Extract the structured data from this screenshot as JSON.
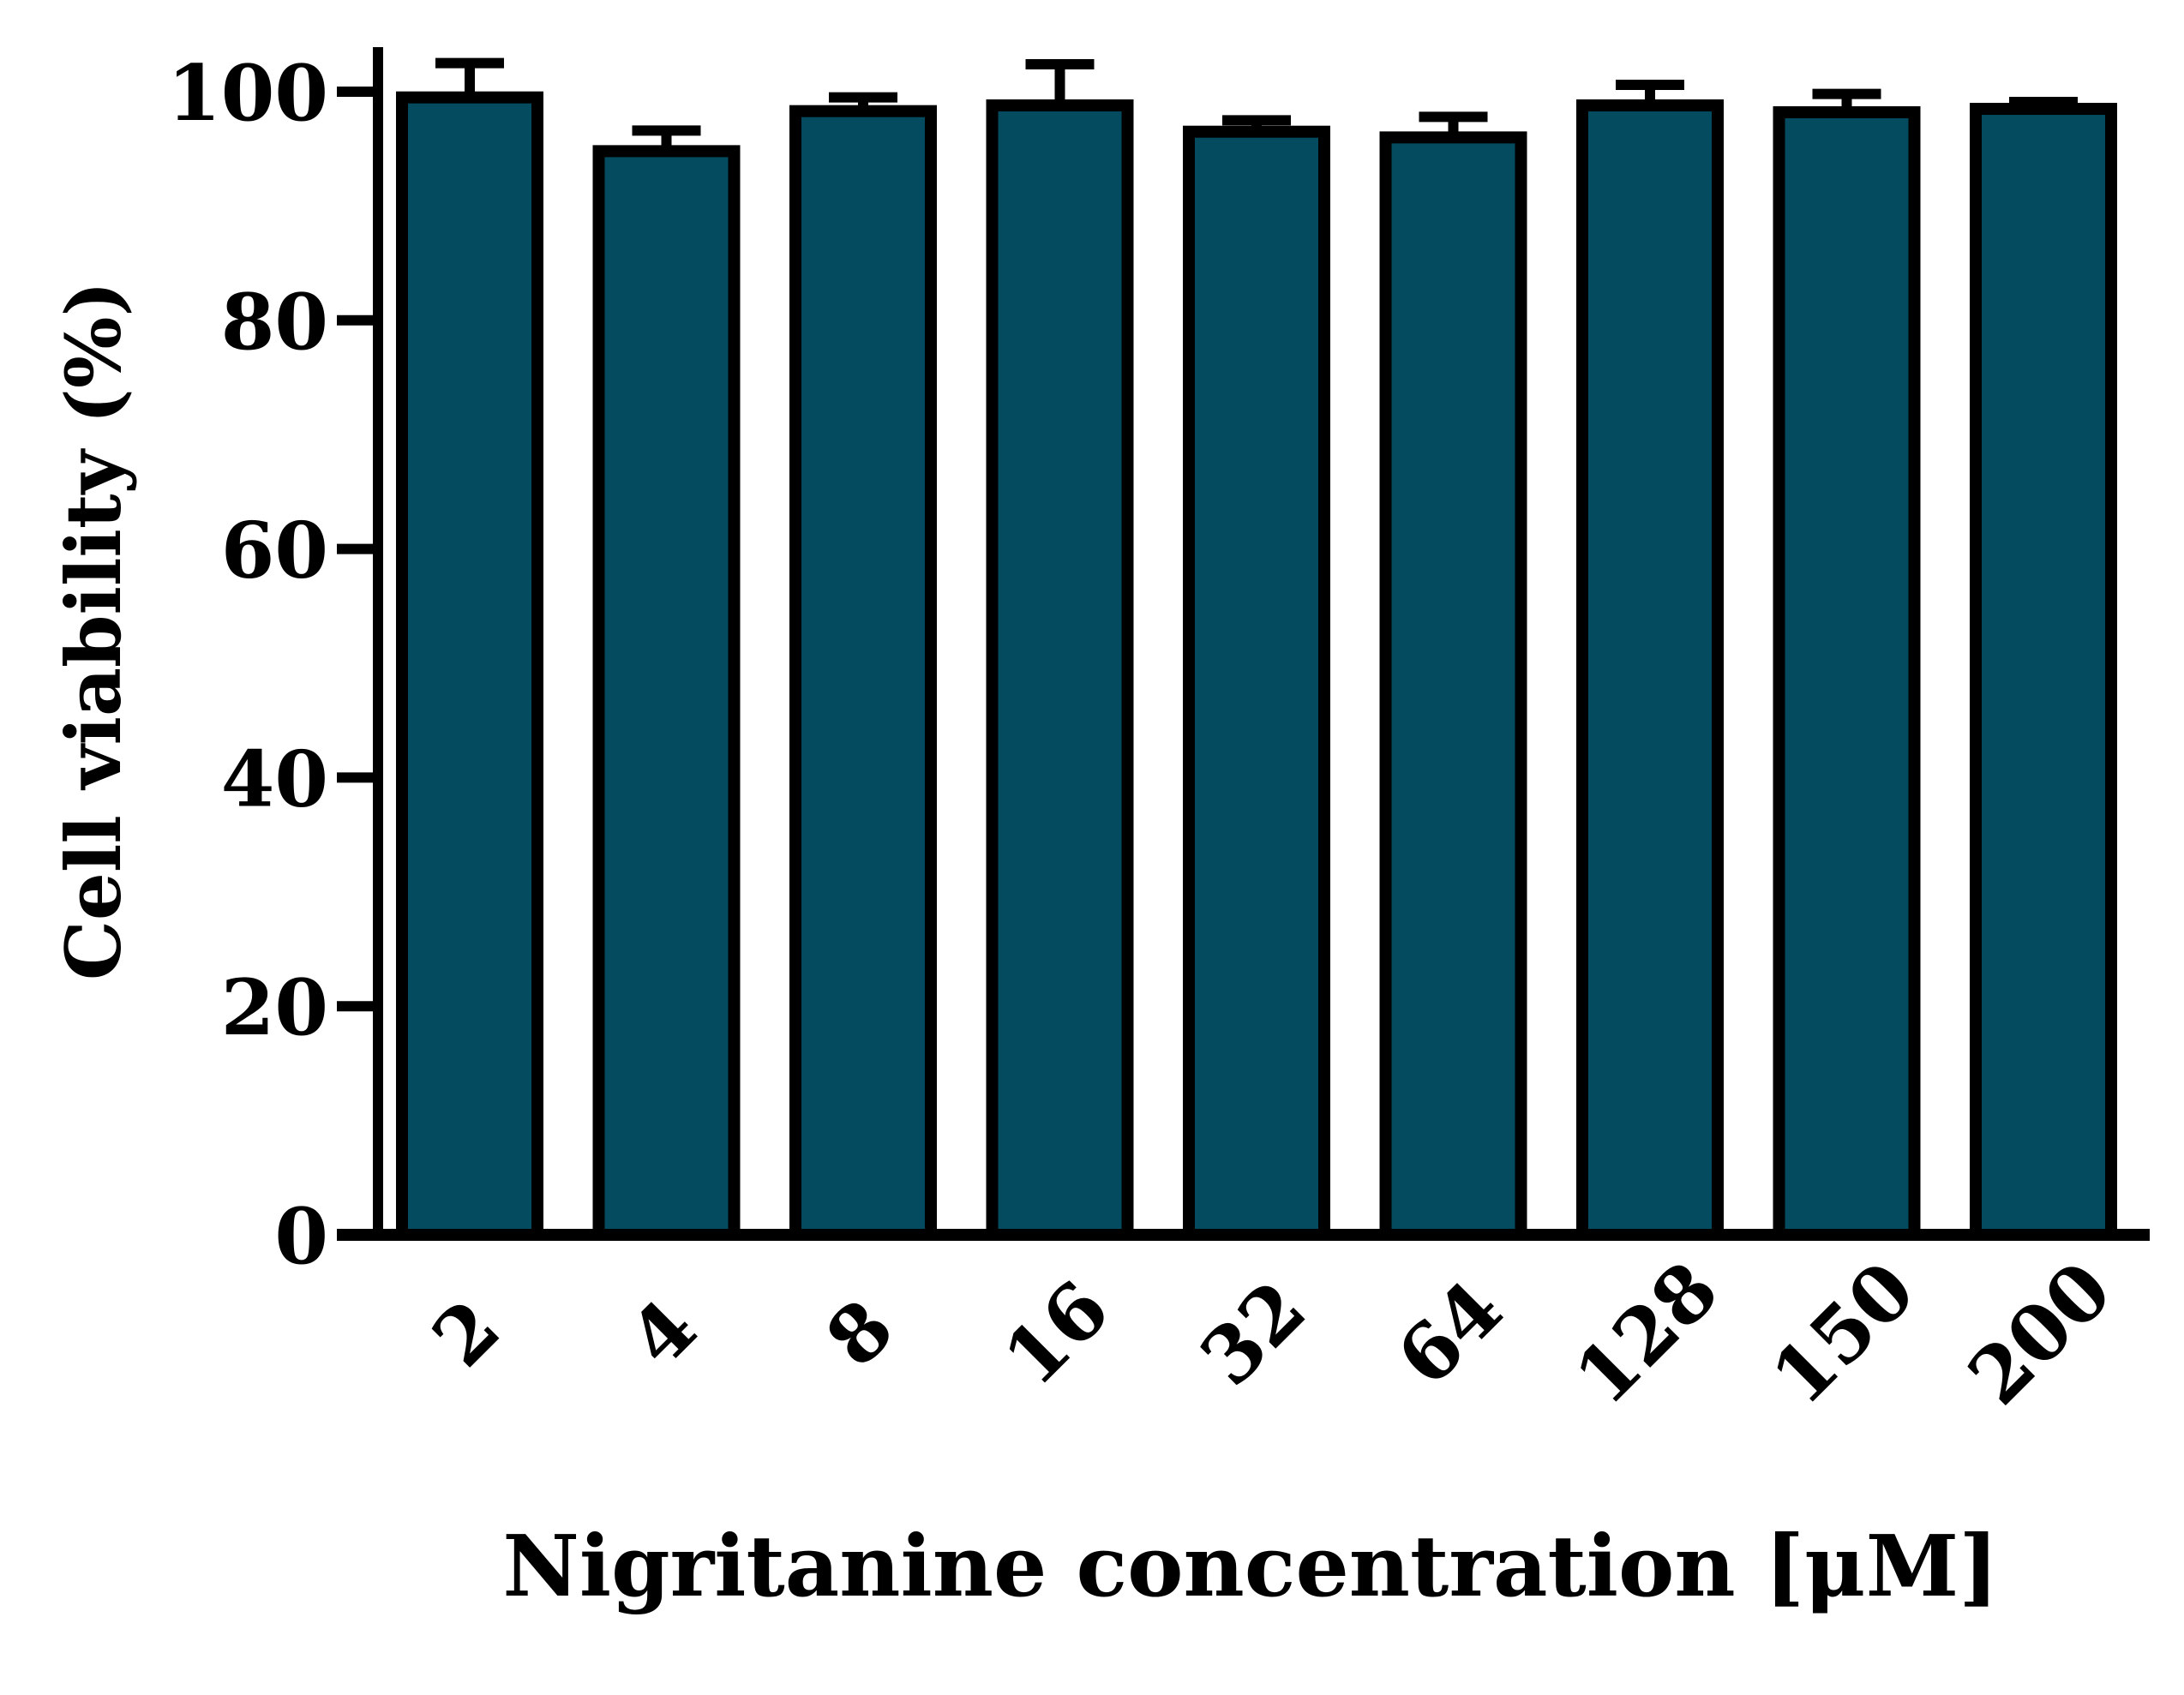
{
  "chart_data": {
    "type": "bar",
    "categories": [
      "2",
      "4",
      "8",
      "16",
      "32",
      "64",
      "128",
      "150",
      "200"
    ],
    "values": [
      99.5,
      94.8,
      98.3,
      98.8,
      96.5,
      96.0,
      98.8,
      98.2,
      98.5
    ],
    "error": [
      3.0,
      1.8,
      1.2,
      3.6,
      1.0,
      1.8,
      1.8,
      1.6,
      0.6
    ],
    "title": "",
    "xlabel": "Nigritanine concentration [μM]",
    "ylabel": "Cell viability (%)",
    "ylim": [
      0,
      100
    ],
    "yticks": [
      0,
      20,
      40,
      60,
      80,
      100
    ],
    "grid": false,
    "legend": "none",
    "bar_color": "#044b5f",
    "edge_color": "#000000"
  }
}
